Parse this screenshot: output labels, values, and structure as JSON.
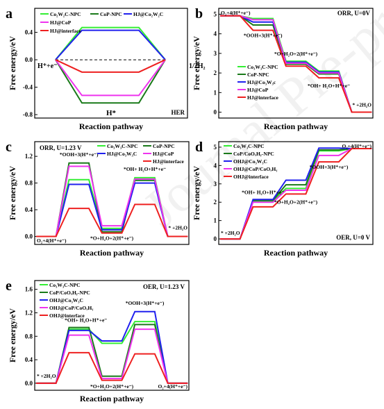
{
  "chart_data": [
    {
      "type": "line",
      "panel_label": "a",
      "corner_text": "HER",
      "xlabel": "Reaction pathway",
      "ylabel": "Free energy/eV",
      "ylim": [
        -0.85,
        0.75
      ],
      "yticks": [
        "-0.8",
        "-0.4",
        "0.0",
        "0.4"
      ],
      "ytick_values": [
        -0.8,
        -0.4,
        0.0,
        0.4
      ],
      "step_labels": [
        "H⁺+e⁻",
        "H*",
        "1/2H₂"
      ],
      "legend": [
        "Co₂W₂C-NPC",
        "CoP-NPC",
        "HJ@Co₂W₂C",
        "HJ@CoP",
        "HJ@interface"
      ],
      "series": [
        {
          "name": "Co₂W₂C-NPC",
          "color": "#33ee33",
          "values": [
            0,
            0.47,
            0
          ]
        },
        {
          "name": "CoP-NPC",
          "color": "#1a7a1a",
          "values": [
            0,
            -0.63,
            0
          ]
        },
        {
          "name": "HJ@Co₂W₂C",
          "color": "#2020ee",
          "values": [
            0,
            0.43,
            0
          ]
        },
        {
          "name": "HJ@CoP",
          "color": "#ee33ee",
          "values": [
            0,
            -0.52,
            0
          ]
        },
        {
          "name": "HJ@interface",
          "color": "#ee2020",
          "values": [
            0,
            -0.18,
            0
          ]
        }
      ]
    },
    {
      "type": "line",
      "panel_label": "b",
      "corner_text": "ORR, U=0V",
      "xlabel": "Reaction pathway",
      "ylabel": "Free energy/eV",
      "ylim": [
        -0.3,
        5.3
      ],
      "yticks": [
        "0",
        "1",
        "2",
        "3",
        "4",
        "5"
      ],
      "ytick_values": [
        0,
        1,
        2,
        3,
        4,
        5
      ],
      "step_labels": [
        "O₂+4(H⁺+e⁻)",
        "*OOH+3(H⁺+e⁻)",
        "*O+H₂O+2(H⁺+e⁻)",
        "*OH+ H₂O+H⁺+e⁻",
        "* +2H₂O"
      ],
      "legend": [
        "Co₃W₃C-NPC",
        "CoP-NPC",
        "HJ@Co₃W₃c",
        "HJ@CoP",
        "HJ@interface"
      ],
      "series": [
        {
          "name": "Co₃W₃C-NPC",
          "color": "#33ee33",
          "values": [
            4.92,
            4.78,
            2.6,
            2.1,
            0
          ]
        },
        {
          "name": "CoP-NPC",
          "color": "#1a7a1a",
          "values": [
            4.92,
            4.45,
            2.45,
            1.95,
            0
          ]
        },
        {
          "name": "HJ@Co₃W₃c",
          "color": "#2020ee",
          "values": [
            4.92,
            4.6,
            2.55,
            2.05,
            0
          ]
        },
        {
          "name": "HJ@CoP",
          "color": "#ee33ee",
          "values": [
            4.92,
            4.72,
            2.5,
            2.0,
            0
          ]
        },
        {
          "name": "HJ@interface",
          "color": "#ee2020",
          "values": [
            4.92,
            4.18,
            2.35,
            1.75,
            0
          ]
        }
      ]
    },
    {
      "type": "line",
      "panel_label": "c",
      "corner_text": "ORR, U=1.23 V",
      "xlabel": "Reaction pathway",
      "ylabel": "Free energy/eV",
      "ylim": [
        -0.12,
        1.42
      ],
      "yticks": [
        "0.0",
        "0.4",
        "0.8",
        "1.2"
      ],
      "ytick_values": [
        0,
        0.4,
        0.8,
        1.2
      ],
      "step_labels": [
        "O₂+4(H⁺+e⁻)",
        "*OOH+3(H⁺+e⁻)",
        "*O+H₂O+2(H⁺+e⁻)",
        "*OH+ H₂O+H⁺+e⁻",
        "* +2H₂O"
      ],
      "legend": [
        "Co₃W₃C-NPC",
        "CoP-NPC",
        "HJ@Co₃W₃C",
        "HJ@CoP",
        "HJ@interface"
      ],
      "series": [
        {
          "name": "Co₃W₃C-NPC",
          "color": "#33ee33",
          "values": [
            0,
            0.85,
            0.12,
            0.88,
            0
          ]
        },
        {
          "name": "CoP-NPC",
          "color": "#1a7a1a",
          "values": [
            0,
            1.1,
            0.07,
            0.84,
            0
          ]
        },
        {
          "name": "HJ@Co₃W₃C",
          "color": "#2020ee",
          "values": [
            0,
            0.78,
            0.1,
            0.8,
            0
          ]
        },
        {
          "name": "HJ@CoP",
          "color": "#ee33ee",
          "values": [
            0,
            1.05,
            0.16,
            0.86,
            0
          ]
        },
        {
          "name": "HJ@interface",
          "color": "#ee2020",
          "values": [
            0,
            0.42,
            0.05,
            0.48,
            0
          ]
        }
      ]
    },
    {
      "type": "line",
      "panel_label": "d",
      "corner_text": "OER, U=0 V",
      "xlabel": "Reaction pathway",
      "ylabel": "Free energy/eV",
      "ylim": [
        -0.3,
        5.3
      ],
      "yticks": [
        "0",
        "1",
        "2",
        "3",
        "4",
        "5"
      ],
      "ytick_values": [
        0,
        1,
        2,
        3,
        4,
        5
      ],
      "step_labels": [
        "* +2H₂O",
        "*OH+ H₂O+H⁺+e⁻",
        "*O+H₂O+2(H⁺+e⁻)",
        "*OOH+3(H⁺+e⁻)",
        "O₂+4(H⁺+e⁻)"
      ],
      "legend": [
        "Co₃W₃C-NPC",
        "CoP/CoOₓHᵧ-NPC",
        "OHJ@Co₃W₃C",
        "OHJ@CoP/CoOₓHᵧ",
        "OHJ@interface"
      ],
      "series": [
        {
          "name": "Co₃W₃C-NPC",
          "color": "#33ee33",
          "values": [
            0,
            2.05,
            2.75,
            4.8,
            4.92
          ]
        },
        {
          "name": "CoP/CoOₓHᵧ-NPC",
          "color": "#1a7a1a",
          "values": [
            0,
            2.1,
            2.95,
            4.85,
            4.92
          ]
        },
        {
          "name": "OHJ@Co₃W₃C",
          "color": "#2020ee",
          "values": [
            0,
            2.15,
            3.2,
            4.95,
            4.92
          ]
        },
        {
          "name": "OHJ@CoP/CoOₓHᵧ",
          "color": "#ee33ee",
          "values": [
            0,
            2.0,
            2.65,
            4.55,
            4.92
          ]
        },
        {
          "name": "OHJ@interface",
          "color": "#ee2020",
          "values": [
            0,
            1.75,
            2.45,
            4.2,
            4.92
          ]
        }
      ]
    },
    {
      "type": "line",
      "panel_label": "e",
      "corner_text": "OER, U=1.23 V",
      "xlabel": "Reaction pathway",
      "ylabel": "Free energy/eV",
      "ylim": [
        -0.12,
        1.75
      ],
      "yticks": [
        "0.0",
        "0.4",
        "0.8",
        "1.2",
        "1.6"
      ],
      "ytick_values": [
        0,
        0.4,
        0.8,
        1.2,
        1.6
      ],
      "step_labels": [
        "* +2H₂O",
        "*OH+ H₂O+H⁺+e⁻",
        "*O+H₂O+2(H⁺+e⁻)",
        "*OOH+3(H⁺+e⁻)",
        "O₂+4(H⁺+e⁻)"
      ],
      "legend": [
        "Co₃W₃C-NPC",
        "CoP/CoOₓHᵧ-NPC",
        "OHJ@Co₃W₃C",
        "OHJ@CoP/CoOₓHᵧ",
        "OHJ@interface"
      ],
      "series": [
        {
          "name": "Co₃W₃C-NPC",
          "color": "#33ee33",
          "values": [
            0,
            0.92,
            0.68,
            1.05,
            0
          ]
        },
        {
          "name": "CoP/CoOₓHᵧ-NPC",
          "color": "#1a7a1a",
          "values": [
            0,
            0.95,
            0.12,
            1.0,
            0
          ]
        },
        {
          "name": "OHJ@Co₃W₃C",
          "color": "#2020ee",
          "values": [
            0,
            0.9,
            0.72,
            1.22,
            0
          ]
        },
        {
          "name": "OHJ@CoP/CoOₓHᵧ",
          "color": "#ee33ee",
          "values": [
            0,
            0.82,
            0.08,
            0.92,
            0
          ]
        },
        {
          "name": "OHJ@interface",
          "color": "#ee2020",
          "values": [
            0,
            0.52,
            0.05,
            0.5,
            0
          ]
        }
      ]
    }
  ]
}
